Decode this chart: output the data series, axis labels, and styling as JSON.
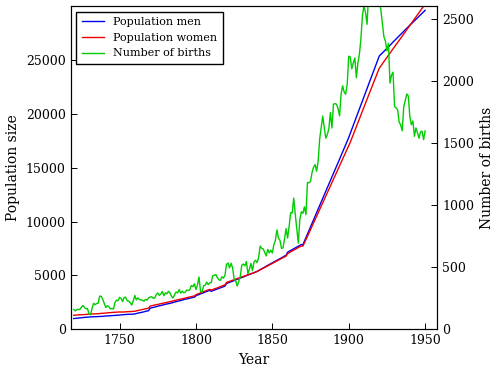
{
  "title": "",
  "xlabel": "Year",
  "ylabel_left": "Population size",
  "ylabel_right": "Number of births",
  "xlim": [
    1718,
    1958
  ],
  "ylim_left": [
    0,
    30000
  ],
  "ylim_right": [
    0,
    2600
  ],
  "xticks": [
    1750,
    1800,
    1850,
    1900,
    1950
  ],
  "yticks_left": [
    0,
    5000,
    10000,
    15000,
    20000,
    25000
  ],
  "yticks_right": [
    0,
    500,
    1000,
    1500,
    2000,
    2500
  ],
  "legend_labels": [
    "Population men",
    "Population women",
    "Number of births"
  ],
  "color_men": "#0000EE",
  "color_women": "#EE0000",
  "color_births": "#00CC00",
  "background_color": "#FFFFFF",
  "linewidth": 1.0,
  "seed": 42
}
